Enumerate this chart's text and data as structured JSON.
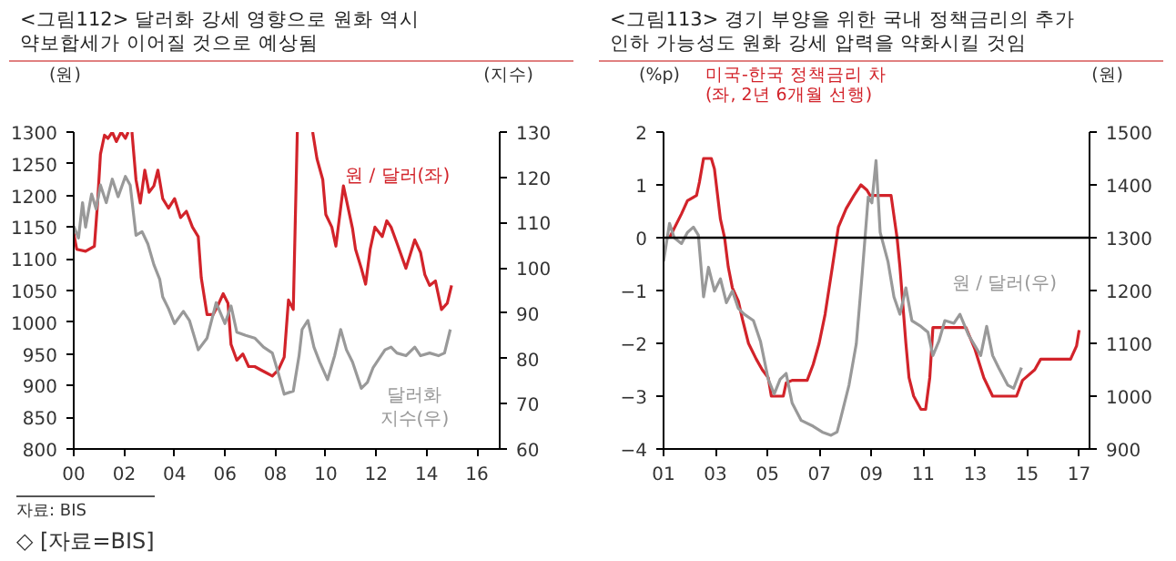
{
  "chart_data": [
    {
      "type": "line",
      "title": "<그림112> 달러화 강세 영향으로 원화 역시 약보합세가 이어질 것으로 예상됨",
      "ylabel": "(원)",
      "y2label": "(지수)",
      "xlim": [
        2000,
        2016.9
      ],
      "xticks": [
        {
          "value": 2000,
          "label": "00"
        },
        {
          "value": 2002,
          "label": "02"
        },
        {
          "value": 2004,
          "label": "04"
        },
        {
          "value": 2006,
          "label": "06"
        },
        {
          "value": 2008,
          "label": "08"
        },
        {
          "value": 2010,
          "label": "10"
        },
        {
          "value": 2012,
          "label": "12"
        },
        {
          "value": 2014,
          "label": "14"
        },
        {
          "value": 2016,
          "label": "16"
        }
      ],
      "ylim": [
        800,
        1300
      ],
      "yticks": [
        800,
        850,
        900,
        950,
        1000,
        1050,
        1100,
        1150,
        1200,
        1250,
        1300
      ],
      "y2lim": [
        60,
        130
      ],
      "y2ticks": [
        60,
        70,
        80,
        90,
        100,
        110,
        120,
        130
      ],
      "grid": false,
      "series": [
        {
          "name": "원 / 달러(좌)",
          "color": "#d2232a",
          "x": [
            2000.0,
            2000.12,
            2000.47,
            2000.82,
            2000.94,
            2001.06,
            2001.22,
            2001.36,
            2001.53,
            2001.69,
            2001.88,
            2002.05,
            2002.16,
            2002.24,
            2002.31,
            2002.47,
            2002.64,
            2002.82,
            2002.99,
            2003.18,
            2003.34,
            2003.53,
            2003.76,
            2004.0,
            2004.24,
            2004.47,
            2004.71,
            2004.94,
            2005.06,
            2005.29,
            2005.53,
            2005.76,
            2005.93,
            2006.12,
            2006.24,
            2006.47,
            2006.71,
            2006.94,
            2007.18,
            2007.41,
            2007.65,
            2007.88,
            2008.12,
            2008.35,
            2008.52,
            2008.71,
            2008.87,
            2009.1,
            2009.48,
            2009.65,
            2009.88,
            2010.0,
            2010.24,
            2010.4,
            2010.7,
            2011.06,
            2011.18,
            2011.41,
            2011.58,
            2011.76,
            2011.95,
            2012.24,
            2012.42,
            2012.59,
            2012.82,
            2013.18,
            2013.53,
            2013.76,
            2013.93,
            2014.12,
            2014.35,
            2014.59,
            2014.82,
            2014.99
          ],
          "values": [
            1140,
            1115,
            1112,
            1120,
            1185,
            1265,
            1295,
            1290,
            1300,
            1285,
            1300,
            1290,
            1300,
            null,
            1300,
            1225,
            1188,
            1240,
            1205,
            1215,
            1240,
            1195,
            1180,
            1195,
            1165,
            1175,
            1150,
            1135,
            1070,
            1012,
            1012,
            1030,
            1045,
            1030,
            965,
            940,
            950,
            930,
            930,
            925,
            920,
            915,
            925,
            945,
            1035,
            1020,
            1300,
            null,
            1300,
            1258,
            1225,
            1170,
            1150,
            1120,
            1215,
            1148,
            1115,
            1085,
            1060,
            1115,
            1150,
            1135,
            1160,
            1150,
            1125,
            1085,
            1130,
            1110,
            1075,
            1058,
            1065,
            1020,
            1030,
            1058
          ]
        },
        {
          "name": "달러화 지수(우)",
          "color": "#999999",
          "axis": "y2",
          "x": [
            2000.0,
            2000.19,
            2000.35,
            2000.47,
            2000.71,
            2000.89,
            2001.06,
            2001.29,
            2001.53,
            2001.76,
            2002.05,
            2002.24,
            2002.47,
            2002.71,
            2002.94,
            2003.18,
            2003.41,
            2003.53,
            2003.76,
            2004.0,
            2004.35,
            2004.59,
            2004.94,
            2005.29,
            2005.65,
            2006.0,
            2006.24,
            2006.47,
            2006.82,
            2007.18,
            2007.53,
            2007.88,
            2008.12,
            2008.35,
            2008.71,
            2008.94,
            2009.06,
            2009.29,
            2009.53,
            2009.76,
            2010.07,
            2010.35,
            2010.59,
            2010.82,
            2011.06,
            2011.41,
            2011.65,
            2011.88,
            2012.12,
            2012.35,
            2012.59,
            2012.82,
            2013.18,
            2013.53,
            2013.76,
            2014.12,
            2014.47,
            2014.71,
            2014.94
          ],
          "values": [
            109.2,
            106.6,
            114.4,
            109,
            116.3,
            113,
            118.3,
            114.4,
            119.6,
            115.7,
            120.2,
            118.3,
            107.2,
            108,
            105.3,
            100.7,
            97.5,
            93.6,
            91,
            87.7,
            90.4,
            88.4,
            81.9,
            84.5,
            92.3,
            87.7,
            91.6,
            85.8,
            85.1,
            84.5,
            82.5,
            81.2,
            76.7,
            72.1,
            72.8,
            80.6,
            86.4,
            88.4,
            82.5,
            79.2,
            75.3,
            80.6,
            86.4,
            81.9,
            79.2,
            73.4,
            74.7,
            78,
            80,
            81.9,
            82.5,
            81.2,
            80.6,
            82.5,
            80.6,
            81.2,
            80.6,
            81.2,
            86.4
          ]
        }
      ]
    },
    {
      "type": "line",
      "title": "<그림113> 경기 부양을 위한 국내 정책금리의 추가 인하 가능성도 원화 강세 압력을 약화시킬 것임",
      "ylabel": "(%p)",
      "y2label": "(원)",
      "xlim": [
        2001,
        2017.4
      ],
      "xticks": [
        {
          "value": 2001,
          "label": "01"
        },
        {
          "value": 2003,
          "label": "03"
        },
        {
          "value": 2005,
          "label": "05"
        },
        {
          "value": 2007,
          "label": "07"
        },
        {
          "value": 2009,
          "label": "09"
        },
        {
          "value": 2011,
          "label": "11"
        },
        {
          "value": 2013,
          "label": "13"
        },
        {
          "value": 2015,
          "label": "15"
        },
        {
          "value": 2017,
          "label": "17"
        }
      ],
      "ylim": [
        -4,
        2
      ],
      "yticks": [
        -4,
        -3,
        -2,
        -1,
        0,
        1,
        2
      ],
      "y2lim": [
        900,
        1500
      ],
      "y2ticks": [
        900,
        1000,
        1100,
        1200,
        1300,
        1400,
        1500
      ],
      "grid": false,
      "ref_lines": [
        {
          "axis": "y",
          "value": 0,
          "color": "#000000"
        }
      ],
      "annotations": [
        "자료: BIS",
        "◇ [자료=BIS]"
      ],
      "series": [
        {
          "name": "미국-한국 정책금리 차 (좌, 2년 6개월 선행)",
          "color": "#d2232a",
          "x": [
            2001.23,
            2001.69,
            2001.92,
            2002.27,
            2002.38,
            2002.54,
            2002.84,
            2002.96,
            2003.19,
            2003.35,
            2003.49,
            2003.65,
            2003.88,
            2004.04,
            2004.27,
            2004.57,
            2004.8,
            2005.03,
            2005.15,
            2005.61,
            2005.72,
            2005.95,
            2006.53,
            2006.76,
            2006.99,
            2007.22,
            2007.5,
            2007.73,
            2008.03,
            2008.33,
            2008.6,
            2008.83,
            2008.95,
            2009.76,
            2009.99,
            2010.1,
            2010.33,
            2010.45,
            2010.63,
            2010.91,
            2011.09,
            2011.25,
            2011.37,
            2012.64,
            2012.98,
            2013.33,
            2013.67,
            2014.59,
            2014.82,
            2015.29,
            2015.52,
            2016.67,
            2016.9,
            2017.0
          ],
          "values": [
            0,
            0.45,
            0.7,
            0.8,
            1.05,
            1.5,
            1.5,
            1.3,
            0.35,
            0,
            -0.55,
            -0.95,
            -1.2,
            -1.55,
            -2.0,
            -2.3,
            -2.5,
            -2.65,
            -3.0,
            -3.0,
            -2.75,
            -2.7,
            -2.7,
            -2.4,
            -2.0,
            -1.45,
            -0.55,
            0.2,
            0.55,
            0.8,
            1.0,
            0.9,
            0.8,
            0.8,
            0,
            -0.55,
            -2.0,
            -2.65,
            -3.0,
            -3.25,
            -3.25,
            -2.65,
            -1.7,
            -1.7,
            -2.1,
            -2.65,
            -3.0,
            -3.0,
            -2.7,
            -2.5,
            -2.3,
            -2.3,
            -2.05,
            -1.75
          ]
        },
        {
          "name": "원 / 달러(우)",
          "color": "#999999",
          "axis": "y2",
          "x": [
            2001.0,
            2001.23,
            2001.41,
            2001.69,
            2001.92,
            2002.15,
            2002.34,
            2002.54,
            2002.73,
            2002.96,
            2003.19,
            2003.42,
            2003.65,
            2003.88,
            2004.11,
            2004.46,
            2004.73,
            2005.03,
            2005.26,
            2005.49,
            2005.72,
            2005.95,
            2006.3,
            2006.76,
            2007.11,
            2007.45,
            2007.68,
            2007.8,
            2008.14,
            2008.42,
            2008.65,
            2008.88,
            2009.02,
            2009.18,
            2009.34,
            2009.64,
            2009.87,
            2010.1,
            2010.33,
            2010.56,
            2010.91,
            2011.18,
            2011.37,
            2011.6,
            2011.83,
            2012.18,
            2012.41,
            2012.75,
            2013.21,
            2013.44,
            2013.67,
            2013.9,
            2014.25,
            2014.48,
            2014.78
          ],
          "values": [
            1255,
            1327,
            1300,
            1289,
            1310,
            1320,
            1305,
            1188,
            1244,
            1199,
            1222,
            1177,
            1199,
            1166,
            1155,
            1143,
            1104,
            1032,
            1004,
            1032,
            1043,
            987,
            954,
            943,
            932,
            926,
            932,
            954,
            1021,
            1099,
            1233,
            1377,
            1366,
            1446,
            1310,
            1255,
            1188,
            1155,
            1205,
            1143,
            1132,
            1121,
            1077,
            1104,
            1143,
            1138,
            1155,
            1115,
            1077,
            1132,
            1077,
            1054,
            1021,
            1015,
            1054
          ]
        }
      ]
    }
  ]
}
